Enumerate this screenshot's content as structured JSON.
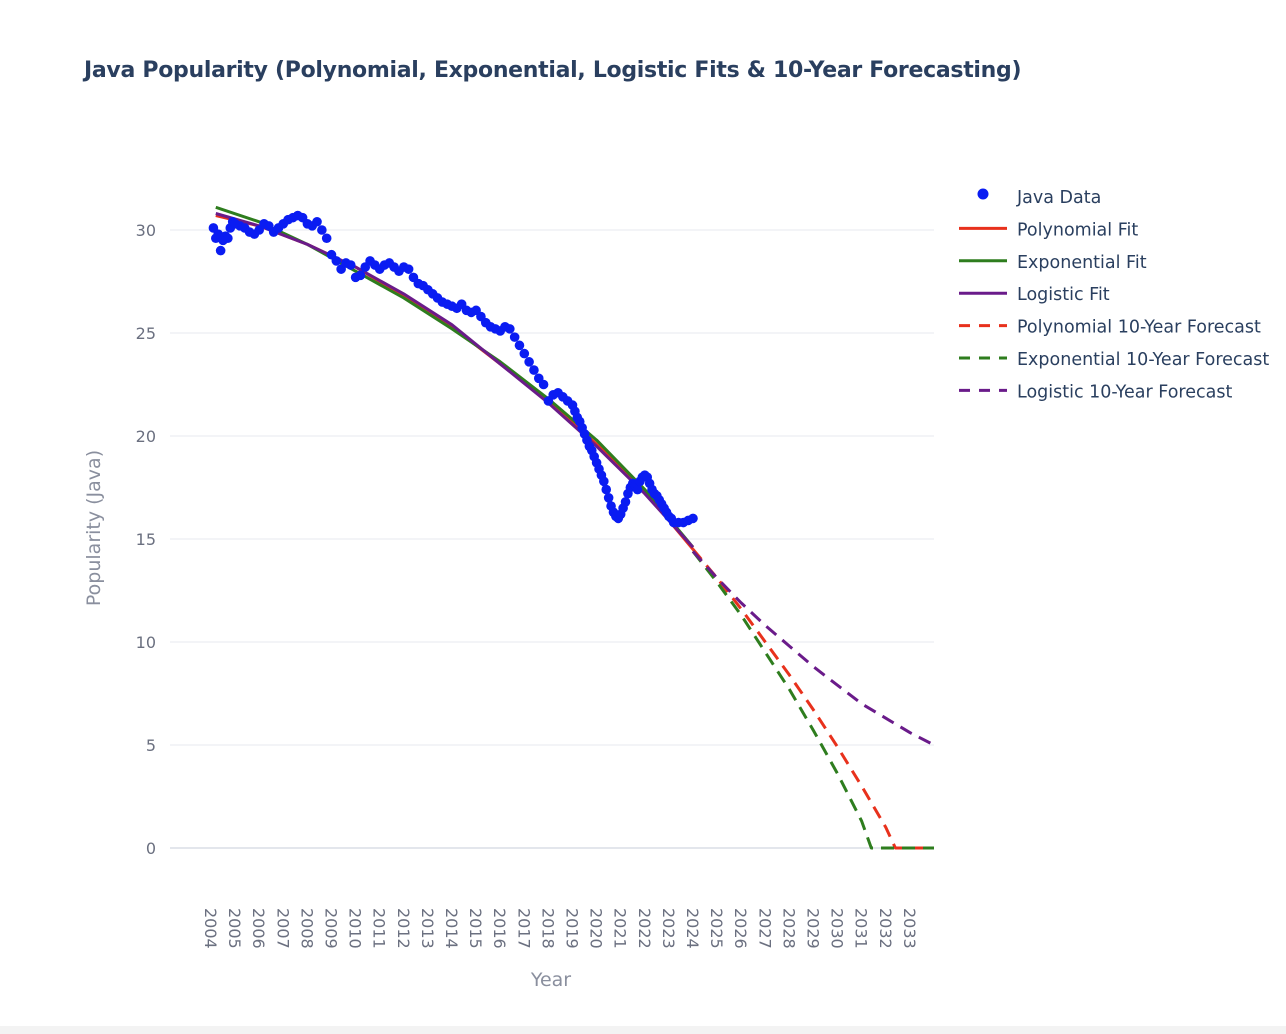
{
  "chart_data": {
    "type": "scatter",
    "title": "Java Popularity (Polynomial, Exponential, Logistic Fits & 10-Year Forecasting)",
    "xlabel": "Year",
    "ylabel": "Popularity (Java)",
    "xlim": [
      2004,
      2034
    ],
    "ylim": [
      -2,
      33
    ],
    "x_ticks": [
      "2004",
      "2005",
      "2006",
      "2007",
      "2008",
      "2009",
      "2010",
      "2011",
      "2012",
      "2013",
      "2014",
      "2015",
      "2016",
      "2017",
      "2018",
      "2019",
      "2020",
      "2021",
      "2022",
      "2023",
      "2024",
      "2025",
      "2026",
      "2027",
      "2028",
      "2029",
      "2030",
      "2031",
      "2032",
      "2033"
    ],
    "y_ticks": [
      0,
      5,
      10,
      15,
      20,
      25,
      30
    ],
    "grid": "horizontal",
    "legend": "right",
    "series": [
      {
        "name": "Java Data",
        "kind": "markers",
        "color": "#0a1cf2",
        "x": [
          2004.1,
          2004.2,
          2004.3,
          2004.4,
          2004.5,
          2004.6,
          2004.7,
          2004.8,
          2004.9,
          2005.0,
          2005.2,
          2005.4,
          2005.6,
          2005.8,
          2006.0,
          2006.2,
          2006.4,
          2006.6,
          2006.8,
          2007.0,
          2007.2,
          2007.4,
          2007.6,
          2007.8,
          2008.0,
          2008.2,
          2008.4,
          2008.6,
          2008.8,
          2009.0,
          2009.2,
          2009.4,
          2009.6,
          2009.8,
          2010.0,
          2010.2,
          2010.4,
          2010.6,
          2010.8,
          2011.0,
          2011.2,
          2011.4,
          2011.6,
          2011.8,
          2012.0,
          2012.2,
          2012.4,
          2012.6,
          2012.8,
          2013.0,
          2013.2,
          2013.4,
          2013.6,
          2013.8,
          2014.0,
          2014.2,
          2014.4,
          2014.6,
          2014.8,
          2015.0,
          2015.2,
          2015.4,
          2015.6,
          2015.8,
          2016.0,
          2016.2,
          2016.4,
          2016.6,
          2016.8,
          2017.0,
          2017.2,
          2017.4,
          2017.6,
          2017.8,
          2018.0,
          2018.2,
          2018.4,
          2018.6,
          2018.8,
          2019.0,
          2019.1,
          2019.2,
          2019.3,
          2019.4,
          2019.5,
          2019.6,
          2019.7,
          2019.8,
          2019.9,
          2020.0,
          2020.1,
          2020.2,
          2020.3,
          2020.4,
          2020.5,
          2020.6,
          2020.7,
          2020.8,
          2020.9,
          2021.0,
          2021.1,
          2021.2,
          2021.3,
          2021.4,
          2021.5,
          2021.6,
          2021.7,
          2021.8,
          2021.9,
          2022.0,
          2022.1,
          2022.2,
          2022.3,
          2022.4,
          2022.5,
          2022.6,
          2022.7,
          2022.8,
          2022.9,
          2023.0,
          2023.1,
          2023.2,
          2023.4,
          2023.6,
          2023.8,
          2024.0
        ],
        "y": [
          30.1,
          29.6,
          29.8,
          29.0,
          29.5,
          29.7,
          29.6,
          30.1,
          30.4,
          30.3,
          30.2,
          30.1,
          29.9,
          29.8,
          30.0,
          30.3,
          30.2,
          29.9,
          30.1,
          30.3,
          30.5,
          30.6,
          30.7,
          30.6,
          30.3,
          30.2,
          30.4,
          30.0,
          29.6,
          28.8,
          28.5,
          28.1,
          28.4,
          28.3,
          27.7,
          27.8,
          28.2,
          28.5,
          28.3,
          28.1,
          28.3,
          28.4,
          28.2,
          28.0,
          28.2,
          28.1,
          27.7,
          27.4,
          27.3,
          27.1,
          26.9,
          26.7,
          26.5,
          26.4,
          26.3,
          26.2,
          26.4,
          26.1,
          26.0,
          26.1,
          25.8,
          25.5,
          25.3,
          25.2,
          25.1,
          25.3,
          25.2,
          24.8,
          24.4,
          24.0,
          23.6,
          23.2,
          22.8,
          22.5,
          21.7,
          22.0,
          22.1,
          21.9,
          21.7,
          21.5,
          21.2,
          20.9,
          20.7,
          20.4,
          20.1,
          19.8,
          19.5,
          19.3,
          19.0,
          18.7,
          18.4,
          18.1,
          17.8,
          17.4,
          17.0,
          16.6,
          16.3,
          16.1,
          16.0,
          16.2,
          16.5,
          16.8,
          17.2,
          17.5,
          17.7,
          17.6,
          17.4,
          17.8,
          18.0,
          18.1,
          18.0,
          17.7,
          17.4,
          17.2,
          17.1,
          16.9,
          16.7,
          16.5,
          16.3,
          16.1,
          16.0,
          15.8,
          15.8,
          15.8,
          15.9,
          16.0
        ]
      },
      {
        "name": "Polynomial Fit",
        "kind": "line",
        "color": "#e8311c",
        "x": [
          2004.2,
          2006,
          2008,
          2010,
          2012,
          2014,
          2016,
          2018,
          2020,
          2022,
          2024
        ],
        "y": [
          30.7,
          30.2,
          29.3,
          28.2,
          26.8,
          25.3,
          23.5,
          21.7,
          19.6,
          17.3,
          14.5
        ]
      },
      {
        "name": "Exponential Fit",
        "kind": "line",
        "color": "#2e7d1e",
        "x": [
          2004.2,
          2006,
          2008,
          2010,
          2012,
          2014,
          2016,
          2018,
          2020,
          2022,
          2024
        ],
        "y": [
          31.1,
          30.4,
          29.3,
          28.0,
          26.7,
          25.2,
          23.6,
          21.8,
          19.8,
          17.4,
          14.6
        ]
      },
      {
        "name": "Logistic Fit",
        "kind": "line",
        "color": "#6a1b8a",
        "x": [
          2004.2,
          2006,
          2008,
          2010,
          2012,
          2014,
          2016,
          2018,
          2020,
          2022,
          2024
        ],
        "y": [
          30.8,
          30.2,
          29.3,
          28.2,
          26.9,
          25.4,
          23.5,
          21.6,
          19.5,
          17.2,
          14.6
        ]
      },
      {
        "name": "Polynomial 10-Year Forecast",
        "kind": "dash",
        "color": "#e8311c",
        "x": [
          2024,
          2025,
          2026,
          2027,
          2028,
          2029,
          2030,
          2031,
          2032,
          2032.4,
          2033,
          2034
        ],
        "y": [
          14.5,
          13.1,
          11.6,
          10.0,
          8.4,
          6.7,
          4.9,
          3.0,
          1.0,
          0,
          0,
          0
        ]
      },
      {
        "name": "Exponential 10-Year Forecast",
        "kind": "dash",
        "color": "#2e7d1e",
        "x": [
          2024,
          2025,
          2026,
          2027,
          2028,
          2029,
          2030,
          2031,
          2031.4,
          2032,
          2033,
          2034
        ],
        "y": [
          14.4,
          12.9,
          11.3,
          9.5,
          7.7,
          5.7,
          3.6,
          1.3,
          0,
          0,
          0,
          0
        ]
      },
      {
        "name": "Logistic 10-Year Forecast",
        "kind": "dash",
        "color": "#6a1b8a",
        "x": [
          2024,
          2025,
          2026,
          2027,
          2028,
          2029,
          2030,
          2031,
          2032,
          2033,
          2034
        ],
        "y": [
          14.4,
          13.1,
          11.9,
          10.8,
          9.8,
          8.8,
          7.9,
          7.0,
          6.3,
          5.6,
          5.0
        ]
      }
    ]
  }
}
